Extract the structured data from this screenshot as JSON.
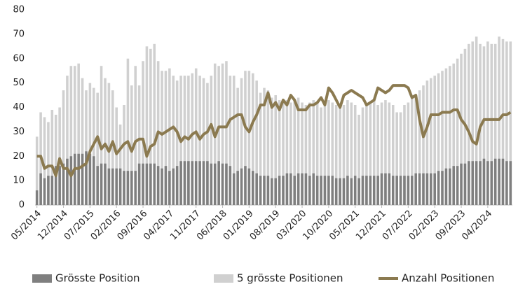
{
  "chart_data": {
    "type": "bar-line",
    "categories": [
      "05/2014",
      null,
      null,
      null,
      null,
      null,
      null,
      "12/2014",
      null,
      null,
      null,
      null,
      null,
      null,
      "07/2015",
      null,
      null,
      null,
      null,
      null,
      null,
      "02/2016",
      null,
      null,
      null,
      null,
      null,
      null,
      "09/2016",
      null,
      null,
      null,
      null,
      null,
      null,
      "04/2017",
      null,
      null,
      null,
      null,
      null,
      null,
      "11/2017",
      null,
      null,
      null,
      null,
      null,
      null,
      "06/2018",
      null,
      null,
      null,
      null,
      null,
      null,
      "01/2019",
      null,
      null,
      null,
      null,
      null,
      null,
      "08/2019",
      null,
      null,
      null,
      null,
      null,
      null,
      "03/2020",
      null,
      null,
      null,
      null,
      null,
      null,
      "10/2020",
      null,
      null,
      null,
      null,
      null,
      null,
      "05/2021",
      null,
      null,
      null,
      null,
      null,
      null,
      "12/2021",
      null,
      null,
      null,
      null,
      null,
      null,
      "07/2022",
      null,
      null,
      null,
      null,
      null,
      null,
      "02/2023",
      null,
      null,
      null,
      null,
      null,
      null,
      "09/2023",
      null,
      null,
      null,
      null,
      null,
      null,
      "04/2024",
      null,
      null,
      null,
      null,
      null,
      null
    ],
    "series": [
      {
        "name": "5 grösste Positionen",
        "kind": "bar",
        "color": "#d0d0d0",
        "values": [
          28,
          38,
          36,
          34,
          39,
          37,
          40,
          47,
          53,
          57,
          57,
          58,
          52,
          47,
          50,
          48,
          46,
          57,
          52,
          50,
          47,
          40,
          33,
          41,
          60,
          49,
          57,
          49,
          59,
          65,
          64,
          66,
          59,
          55,
          55,
          56,
          53,
          51,
          53,
          53,
          53,
          54,
          56,
          53,
          52,
          50,
          53,
          58,
          57,
          58,
          59,
          53,
          53,
          48,
          52,
          55,
          55,
          54,
          51,
          46,
          48,
          47,
          44,
          45,
          43,
          42,
          43,
          42,
          43,
          44,
          42,
          41,
          42,
          43,
          42,
          40,
          42,
          43,
          42,
          41,
          40,
          41,
          43,
          42,
          41,
          37,
          40,
          41,
          42,
          43,
          41,
          42,
          43,
          42,
          41,
          38,
          38,
          41,
          42,
          44,
          45,
          47,
          49,
          51,
          52,
          53,
          54,
          55,
          56,
          57,
          58,
          60,
          62,
          64,
          66,
          67,
          69,
          66,
          65,
          67,
          66,
          66,
          69,
          68,
          67,
          67
        ]
      },
      {
        "name": "Grösste Position",
        "kind": "bar",
        "color": "#7f7f7f",
        "values": [
          6,
          13,
          11,
          12,
          12,
          16,
          16,
          17,
          19,
          20,
          21,
          21,
          21,
          22,
          21,
          20,
          16,
          17,
          17,
          15,
          15,
          15,
          15,
          14,
          14,
          14,
          14,
          17,
          17,
          17,
          17,
          17,
          16,
          15,
          16,
          14,
          15,
          16,
          18,
          18,
          18,
          18,
          18,
          18,
          18,
          18,
          17,
          17,
          18,
          17,
          17,
          16,
          13,
          14,
          15,
          16,
          15,
          14,
          13,
          12,
          12,
          12,
          11,
          11,
          12,
          12,
          13,
          13,
          12,
          13,
          13,
          13,
          12,
          13,
          12,
          12,
          12,
          12,
          12,
          11,
          11,
          11,
          12,
          11,
          12,
          11,
          12,
          12,
          12,
          12,
          12,
          13,
          13,
          13,
          12,
          12,
          12,
          12,
          12,
          12,
          13,
          13,
          13,
          13,
          13,
          13,
          14,
          14,
          15,
          15,
          16,
          16,
          17,
          17,
          18,
          18,
          18,
          18,
          19,
          18,
          18,
          19,
          19,
          19,
          18,
          18
        ]
      },
      {
        "name": "Anzahl Positionen",
        "kind": "line",
        "color": "#8b7a50",
        "values": [
          20,
          20,
          15,
          16,
          16,
          12,
          19,
          15,
          15,
          12,
          15,
          15,
          16,
          17,
          22,
          25,
          28,
          23,
          25,
          22,
          26,
          21,
          23,
          25,
          26,
          22,
          26,
          27,
          27,
          20,
          24,
          25,
          30,
          29,
          30,
          31,
          32,
          30,
          26,
          28,
          27,
          29,
          30,
          27,
          29,
          30,
          33,
          28,
          32,
          32,
          32,
          35,
          36,
          37,
          37,
          32,
          30,
          34,
          37,
          41,
          41,
          46,
          40,
          42,
          39,
          43,
          41,
          45,
          43,
          39,
          39,
          39,
          41,
          41,
          42,
          44,
          41,
          48,
          46,
          43,
          40,
          45,
          46,
          47,
          46,
          45,
          44,
          41,
          42,
          43,
          48,
          47,
          46,
          47,
          49,
          49,
          49,
          49,
          48,
          44,
          45,
          35,
          28,
          32,
          37,
          37,
          37,
          38,
          38,
          38,
          39,
          39,
          35,
          33,
          30,
          26,
          25,
          32,
          35,
          35,
          35,
          35,
          35,
          37,
          37,
          38
        ]
      }
    ],
    "ylim": [
      0,
      80
    ],
    "yticks": [
      0,
      10,
      20,
      30,
      40,
      50,
      60,
      70,
      80
    ],
    "grid": false,
    "legend": "bottom"
  }
}
